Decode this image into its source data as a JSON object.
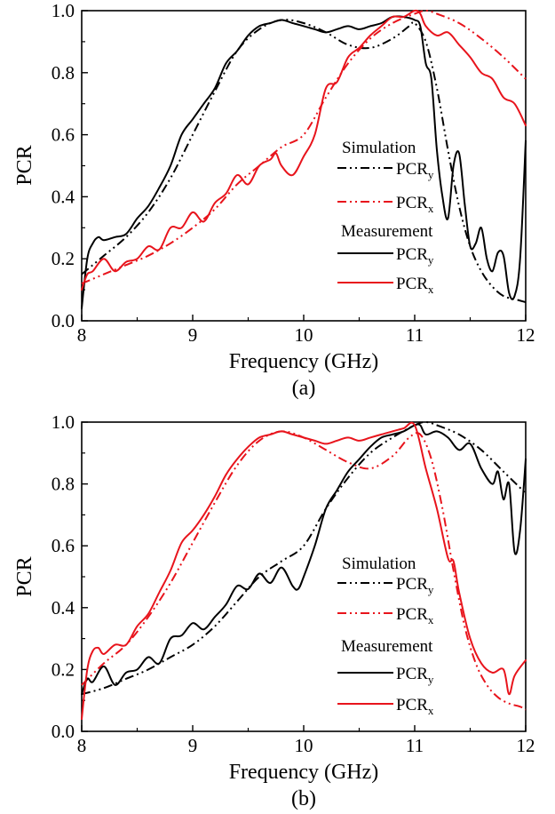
{
  "chart_data": [
    {
      "type": "line",
      "panel_label": "(a)",
      "title": "",
      "xlabel": "Frequency (GHz)",
      "ylabel": "PCR",
      "xlim": [
        8,
        12
      ],
      "ylim": [
        0.0,
        1.0
      ],
      "xticks": [
        "8",
        "9",
        "10",
        "11",
        "12"
      ],
      "yticks": [
        "0.0",
        "0.2",
        "0.4",
        "0.6",
        "0.8",
        "1.0"
      ],
      "grid": false,
      "legend_placement": "center-right",
      "legend": {
        "group1": "Simulation",
        "group2": "Measurement",
        "entries": [
          {
            "group": "Simulation",
            "label": "PCR",
            "sub": "y",
            "color": "#000000",
            "style": "dash-dot-dot"
          },
          {
            "group": "Simulation",
            "label": "PCR",
            "sub": "x",
            "color": "#e8141c",
            "style": "dash-dot-dot"
          },
          {
            "group": "Measurement",
            "label": "PCR",
            "sub": "y",
            "color": "#000000",
            "style": "solid"
          },
          {
            "group": "Measurement",
            "label": "PCR",
            "sub": "x",
            "color": "#e8141c",
            "style": "solid"
          }
        ]
      },
      "series": [
        {
          "group": "Simulation",
          "label": "PCRy",
          "color": "#000000",
          "style": "dash-dot-dot",
          "x": [
            8.0,
            8.2,
            8.4,
            8.6,
            8.8,
            9.0,
            9.2,
            9.4,
            9.6,
            9.8,
            10.0,
            10.2,
            10.4,
            10.6,
            10.8,
            10.95,
            11.0,
            11.1,
            11.2,
            11.3,
            11.4,
            11.5,
            11.6,
            11.7,
            11.8,
            11.9,
            12.0
          ],
          "y": [
            0.15,
            0.21,
            0.27,
            0.35,
            0.46,
            0.6,
            0.74,
            0.87,
            0.94,
            0.97,
            0.96,
            0.93,
            0.89,
            0.88,
            0.91,
            0.95,
            0.96,
            0.9,
            0.75,
            0.55,
            0.37,
            0.24,
            0.16,
            0.11,
            0.08,
            0.07,
            0.06
          ]
        },
        {
          "group": "Simulation",
          "label": "PCRx",
          "color": "#e8141c",
          "style": "dash-dot-dot",
          "x": [
            8.0,
            8.2,
            8.4,
            8.6,
            8.8,
            9.0,
            9.2,
            9.4,
            9.6,
            9.8,
            10.0,
            10.2,
            10.4,
            10.6,
            10.8,
            11.0,
            11.1,
            11.2,
            11.4,
            11.6,
            11.8,
            12.0
          ],
          "y": [
            0.12,
            0.15,
            0.18,
            0.21,
            0.25,
            0.3,
            0.36,
            0.44,
            0.5,
            0.56,
            0.6,
            0.72,
            0.83,
            0.91,
            0.96,
            0.99,
            1.0,
            0.99,
            0.96,
            0.91,
            0.85,
            0.78
          ]
        },
        {
          "group": "Measurement",
          "label": "PCRy",
          "color": "#000000",
          "style": "solid",
          "x": [
            8.0,
            8.05,
            8.1,
            8.15,
            8.2,
            8.3,
            8.4,
            8.5,
            8.6,
            8.7,
            8.8,
            8.9,
            9.0,
            9.1,
            9.2,
            9.3,
            9.4,
            9.5,
            9.6,
            9.7,
            9.8,
            9.9,
            10.0,
            10.1,
            10.2,
            10.3,
            10.4,
            10.5,
            10.6,
            10.7,
            10.8,
            10.9,
            11.0,
            11.05,
            11.1,
            11.15,
            11.2,
            11.25,
            11.3,
            11.35,
            11.4,
            11.45,
            11.5,
            11.55,
            11.6,
            11.65,
            11.7,
            11.75,
            11.8,
            11.85,
            11.9,
            11.95,
            12.0
          ],
          "y": [
            0.04,
            0.2,
            0.25,
            0.27,
            0.26,
            0.27,
            0.28,
            0.33,
            0.37,
            0.43,
            0.5,
            0.6,
            0.65,
            0.7,
            0.75,
            0.83,
            0.87,
            0.92,
            0.95,
            0.96,
            0.97,
            0.96,
            0.95,
            0.94,
            0.93,
            0.94,
            0.95,
            0.94,
            0.95,
            0.96,
            0.98,
            0.98,
            0.97,
            0.95,
            0.83,
            0.78,
            0.55,
            0.4,
            0.33,
            0.5,
            0.54,
            0.38,
            0.24,
            0.25,
            0.3,
            0.2,
            0.16,
            0.22,
            0.21,
            0.09,
            0.08,
            0.2,
            0.58
          ]
        },
        {
          "group": "Measurement",
          "label": "PCRx",
          "color": "#e8141c",
          "style": "solid",
          "x": [
            8.0,
            8.05,
            8.1,
            8.2,
            8.3,
            8.4,
            8.5,
            8.6,
            8.7,
            8.8,
            8.9,
            9.0,
            9.1,
            9.2,
            9.3,
            9.4,
            9.5,
            9.6,
            9.7,
            9.75,
            9.8,
            9.9,
            10.0,
            10.1,
            10.2,
            10.3,
            10.4,
            10.5,
            10.6,
            10.7,
            10.8,
            10.9,
            11.0,
            11.05,
            11.1,
            11.2,
            11.3,
            11.4,
            11.5,
            11.6,
            11.7,
            11.8,
            11.9,
            12.0
          ],
          "y": [
            0.1,
            0.15,
            0.16,
            0.2,
            0.16,
            0.19,
            0.2,
            0.24,
            0.23,
            0.3,
            0.3,
            0.35,
            0.32,
            0.38,
            0.41,
            0.47,
            0.44,
            0.5,
            0.52,
            0.54,
            0.5,
            0.47,
            0.53,
            0.6,
            0.75,
            0.77,
            0.85,
            0.88,
            0.92,
            0.95,
            0.98,
            0.98,
            1.0,
            0.99,
            0.95,
            0.92,
            0.93,
            0.89,
            0.85,
            0.8,
            0.78,
            0.72,
            0.7,
            0.63
          ]
        }
      ]
    },
    {
      "type": "line",
      "panel_label": "(b)",
      "title": "",
      "xlabel": "Frequency (GHz)",
      "ylabel": "PCR",
      "xlim": [
        8,
        12
      ],
      "ylim": [
        0.0,
        1.0
      ],
      "xticks": [
        "8",
        "9",
        "10",
        "11",
        "12"
      ],
      "yticks": [
        "0.0",
        "0.2",
        "0.4",
        "0.6",
        "0.8",
        "1.0"
      ],
      "grid": false,
      "legend_placement": "center-right",
      "legend": {
        "group1": "Simulation",
        "group2": "Measurement",
        "entries": [
          {
            "group": "Simulation",
            "label": "PCR",
            "sub": "y",
            "color": "#000000",
            "style": "dash-dot-dot"
          },
          {
            "group": "Simulation",
            "label": "PCR",
            "sub": "x",
            "color": "#e8141c",
            "style": "dash-dot-dot"
          },
          {
            "group": "Measurement",
            "label": "PCR",
            "sub": "y",
            "color": "#000000",
            "style": "solid"
          },
          {
            "group": "Measurement",
            "label": "PCR",
            "sub": "x",
            "color": "#e8141c",
            "style": "solid"
          }
        ]
      },
      "series": [
        {
          "group": "Simulation",
          "label": "PCRy",
          "color": "#000000",
          "style": "dash-dot-dot",
          "x": [
            8.0,
            8.2,
            8.4,
            8.6,
            8.8,
            9.0,
            9.2,
            9.4,
            9.6,
            9.8,
            10.0,
            10.2,
            10.4,
            10.6,
            10.8,
            11.0,
            11.1,
            11.2,
            11.4,
            11.6,
            11.8,
            12.0
          ],
          "y": [
            0.12,
            0.14,
            0.17,
            0.2,
            0.24,
            0.28,
            0.34,
            0.42,
            0.5,
            0.55,
            0.6,
            0.72,
            0.82,
            0.9,
            0.95,
            0.99,
            1.0,
            0.99,
            0.96,
            0.91,
            0.84,
            0.77
          ]
        },
        {
          "group": "Simulation",
          "label": "PCRx",
          "color": "#e8141c",
          "style": "dash-dot-dot",
          "x": [
            8.0,
            8.2,
            8.4,
            8.6,
            8.8,
            9.0,
            9.2,
            9.4,
            9.6,
            9.8,
            10.0,
            10.2,
            10.4,
            10.6,
            10.8,
            10.95,
            11.05,
            11.15,
            11.25,
            11.35,
            11.45,
            11.55,
            11.65,
            11.75,
            11.85,
            11.95,
            12.0
          ],
          "y": [
            0.15,
            0.22,
            0.28,
            0.37,
            0.48,
            0.61,
            0.74,
            0.86,
            0.94,
            0.97,
            0.95,
            0.91,
            0.87,
            0.85,
            0.89,
            0.95,
            0.96,
            0.88,
            0.72,
            0.52,
            0.34,
            0.22,
            0.15,
            0.11,
            0.09,
            0.08,
            0.07
          ]
        },
        {
          "group": "Measurement",
          "label": "PCRy",
          "color": "#000000",
          "style": "solid",
          "x": [
            8.0,
            8.05,
            8.1,
            8.2,
            8.3,
            8.4,
            8.5,
            8.6,
            8.7,
            8.8,
            8.9,
            9.0,
            9.1,
            9.2,
            9.3,
            9.4,
            9.5,
            9.6,
            9.7,
            9.8,
            9.9,
            9.95,
            10.0,
            10.1,
            10.2,
            10.3,
            10.4,
            10.5,
            10.6,
            10.7,
            10.8,
            10.9,
            11.0,
            11.05,
            11.1,
            11.2,
            11.3,
            11.4,
            11.5,
            11.6,
            11.7,
            11.75,
            11.8,
            11.85,
            11.9,
            11.95,
            12.0
          ],
          "y": [
            0.12,
            0.17,
            0.16,
            0.21,
            0.15,
            0.19,
            0.2,
            0.24,
            0.22,
            0.3,
            0.31,
            0.35,
            0.33,
            0.37,
            0.41,
            0.47,
            0.46,
            0.51,
            0.48,
            0.53,
            0.47,
            0.46,
            0.5,
            0.6,
            0.72,
            0.78,
            0.84,
            0.88,
            0.92,
            0.95,
            0.96,
            0.97,
            0.99,
            0.99,
            0.96,
            0.97,
            0.95,
            0.91,
            0.93,
            0.85,
            0.8,
            0.84,
            0.75,
            0.8,
            0.58,
            0.65,
            0.88
          ]
        },
        {
          "group": "Measurement",
          "label": "PCRx",
          "color": "#e8141c",
          "style": "solid",
          "x": [
            8.0,
            8.05,
            8.1,
            8.15,
            8.2,
            8.3,
            8.4,
            8.5,
            8.6,
            8.7,
            8.8,
            8.9,
            9.0,
            9.1,
            9.2,
            9.3,
            9.4,
            9.5,
            9.6,
            9.7,
            9.8,
            9.9,
            10.0,
            10.1,
            10.2,
            10.3,
            10.4,
            10.5,
            10.6,
            10.7,
            10.8,
            10.9,
            11.0,
            11.1,
            11.2,
            11.3,
            11.35,
            11.4,
            11.5,
            11.6,
            11.7,
            11.8,
            11.85,
            11.9,
            12.0
          ],
          "y": [
            0.04,
            0.2,
            0.26,
            0.27,
            0.25,
            0.28,
            0.28,
            0.34,
            0.38,
            0.45,
            0.52,
            0.61,
            0.65,
            0.7,
            0.76,
            0.83,
            0.88,
            0.92,
            0.95,
            0.96,
            0.97,
            0.96,
            0.95,
            0.94,
            0.93,
            0.94,
            0.95,
            0.94,
            0.95,
            0.96,
            0.97,
            0.98,
            0.99,
            0.85,
            0.72,
            0.56,
            0.55,
            0.45,
            0.3,
            0.22,
            0.19,
            0.2,
            0.12,
            0.18,
            0.23
          ]
        }
      ]
    }
  ]
}
